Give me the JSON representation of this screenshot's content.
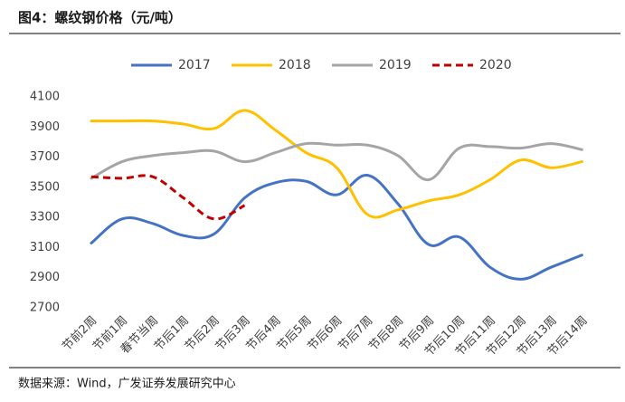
{
  "chart_data": {
    "type": "line",
    "title": "图4：螺纹钢价格（元/吨）",
    "source": "数据来源：Wind，广发证券发展研究中心",
    "categories": [
      "节前2周",
      "节前1周",
      "春节当周",
      "节后1周",
      "节后2周",
      "节后3周",
      "节后4周",
      "节后5周",
      "节后6周",
      "节后7周",
      "节后8周",
      "节后9周",
      "节后10周",
      "节后11周",
      "节后12周",
      "节后13周",
      "节后14周"
    ],
    "series": [
      {
        "name": "2017",
        "color": "#4472c4",
        "values": [
          3130,
          3290,
          3260,
          3180,
          3190,
          3430,
          3530,
          3540,
          3450,
          3580,
          3390,
          3120,
          3170,
          2970,
          2890,
          2970,
          3050
        ]
      },
      {
        "name": "2018",
        "color": "#ffc000",
        "values": [
          3940,
          3940,
          3940,
          3920,
          3890,
          4010,
          3880,
          3730,
          3630,
          3320,
          3350,
          3410,
          3450,
          3550,
          3680,
          3630,
          3670
        ]
      },
      {
        "name": "2019",
        "color": "#a5a5a5",
        "values": [
          3560,
          3670,
          3710,
          3730,
          3740,
          3670,
          3730,
          3790,
          3780,
          3780,
          3710,
          3550,
          3760,
          3770,
          3760,
          3790,
          3750
        ]
      },
      {
        "name": "2020",
        "color": "#c00000",
        "dashed": true,
        "values": [
          3570,
          3560,
          3570,
          3430,
          3290,
          3380,
          null,
          null,
          null,
          null,
          null,
          null,
          null,
          null,
          null,
          null,
          null
        ]
      }
    ],
    "ylim": [
      2700,
      4100
    ],
    "yticks": [
      2700,
      2900,
      3100,
      3300,
      3500,
      3700,
      3900,
      4100
    ],
    "legend": "top"
  }
}
